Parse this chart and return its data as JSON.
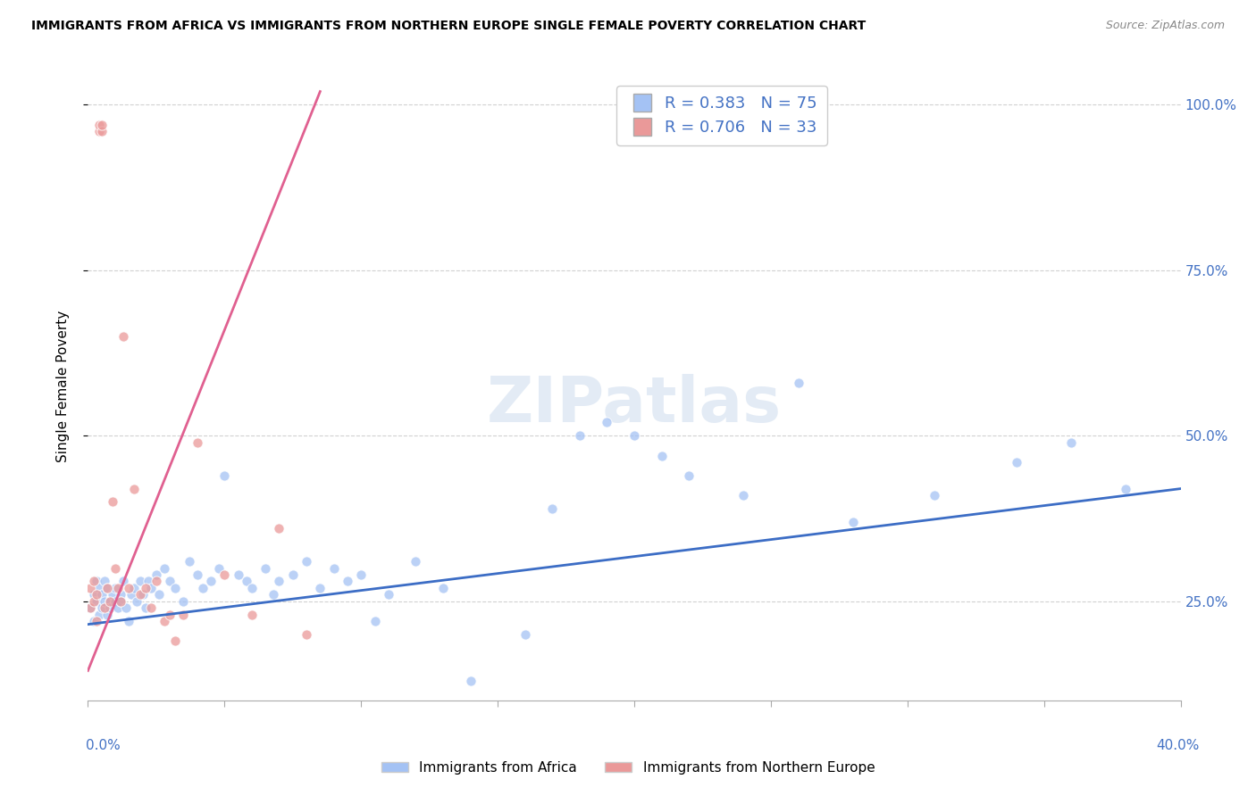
{
  "title": "IMMIGRANTS FROM AFRICA VS IMMIGRANTS FROM NORTHERN EUROPE SINGLE FEMALE POVERTY CORRELATION CHART",
  "source": "Source: ZipAtlas.com",
  "ylabel": "Single Female Poverty",
  "ytick_labels": [
    "100.0%",
    "75.0%",
    "50.0%",
    "25.0%"
  ],
  "ytick_vals": [
    1.0,
    0.75,
    0.5,
    0.25
  ],
  "africa_R": 0.383,
  "africa_N": 75,
  "northern_europe_R": 0.706,
  "northern_europe_N": 33,
  "africa_color": "#a4c2f4",
  "northern_europe_color": "#ea9999",
  "africa_line_color": "#3c6dc5",
  "northern_europe_line_color": "#e06090",
  "background_color": "#ffffff",
  "grid_color": "#cccccc",
  "xlim": [
    0.0,
    0.4
  ],
  "ylim": [
    0.1,
    1.05
  ],
  "watermark": "ZIPatlas",
  "legend_africa_label": "R = 0.383   N = 75",
  "legend_ne_label": "R = 0.706   N = 33",
  "bottom_label_africa": "Immigrants from Africa",
  "bottom_label_ne": "Immigrants from Northern Europe",
  "africa_x": [
    0.001,
    0.002,
    0.002,
    0.003,
    0.003,
    0.004,
    0.004,
    0.005,
    0.005,
    0.006,
    0.006,
    0.007,
    0.007,
    0.008,
    0.008,
    0.009,
    0.01,
    0.01,
    0.011,
    0.012,
    0.012,
    0.013,
    0.014,
    0.015,
    0.016,
    0.017,
    0.018,
    0.019,
    0.02,
    0.021,
    0.022,
    0.023,
    0.025,
    0.026,
    0.028,
    0.03,
    0.032,
    0.035,
    0.037,
    0.04,
    0.042,
    0.045,
    0.048,
    0.05,
    0.055,
    0.058,
    0.06,
    0.065,
    0.068,
    0.07,
    0.075,
    0.08,
    0.085,
    0.09,
    0.095,
    0.1,
    0.105,
    0.11,
    0.12,
    0.13,
    0.14,
    0.16,
    0.17,
    0.18,
    0.19,
    0.2,
    0.21,
    0.22,
    0.24,
    0.26,
    0.28,
    0.31,
    0.34,
    0.36,
    0.38
  ],
  "africa_y": [
    0.24,
    0.22,
    0.26,
    0.25,
    0.28,
    0.23,
    0.27,
    0.26,
    0.24,
    0.25,
    0.28,
    0.23,
    0.27,
    0.25,
    0.24,
    0.26,
    0.25,
    0.27,
    0.24,
    0.26,
    0.25,
    0.28,
    0.24,
    0.22,
    0.26,
    0.27,
    0.25,
    0.28,
    0.26,
    0.24,
    0.28,
    0.27,
    0.29,
    0.26,
    0.3,
    0.28,
    0.27,
    0.25,
    0.31,
    0.29,
    0.27,
    0.28,
    0.3,
    0.44,
    0.29,
    0.28,
    0.27,
    0.3,
    0.26,
    0.28,
    0.29,
    0.31,
    0.27,
    0.3,
    0.28,
    0.29,
    0.22,
    0.26,
    0.31,
    0.27,
    0.13,
    0.2,
    0.39,
    0.5,
    0.52,
    0.5,
    0.47,
    0.44,
    0.41,
    0.58,
    0.37,
    0.41,
    0.46,
    0.49,
    0.42
  ],
  "ne_x": [
    0.001,
    0.001,
    0.002,
    0.002,
    0.003,
    0.003,
    0.004,
    0.004,
    0.005,
    0.005,
    0.006,
    0.007,
    0.008,
    0.009,
    0.01,
    0.011,
    0.012,
    0.013,
    0.015,
    0.017,
    0.019,
    0.021,
    0.023,
    0.025,
    0.028,
    0.03,
    0.032,
    0.035,
    0.04,
    0.05,
    0.06,
    0.07,
    0.08
  ],
  "ne_y": [
    0.24,
    0.27,
    0.25,
    0.28,
    0.22,
    0.26,
    0.96,
    0.97,
    0.96,
    0.97,
    0.24,
    0.27,
    0.25,
    0.4,
    0.3,
    0.27,
    0.25,
    0.65,
    0.27,
    0.42,
    0.26,
    0.27,
    0.24,
    0.28,
    0.22,
    0.23,
    0.19,
    0.23,
    0.49,
    0.29,
    0.23,
    0.36,
    0.2
  ],
  "africa_line_x": [
    0.0,
    0.4
  ],
  "africa_line_y": [
    0.215,
    0.42
  ],
  "ne_line_x": [
    0.0,
    0.085
  ],
  "ne_line_y": [
    0.145,
    1.02
  ]
}
